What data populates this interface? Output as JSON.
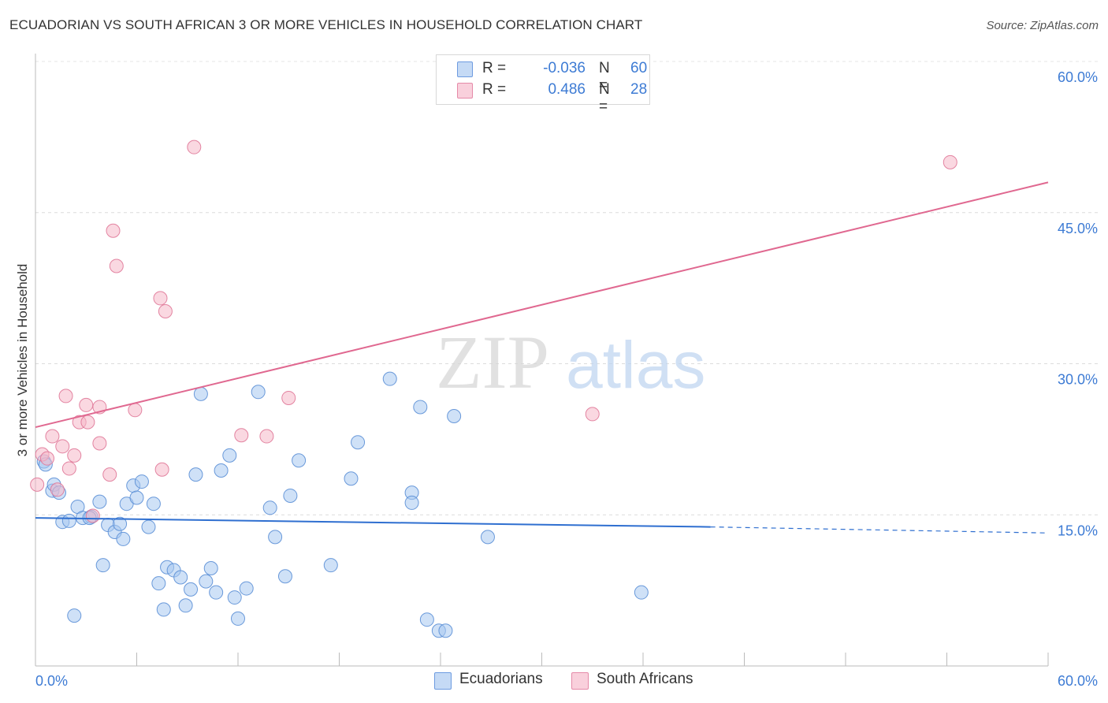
{
  "header": {
    "title": "ECUADORIAN VS SOUTH AFRICAN 3 OR MORE VEHICLES IN HOUSEHOLD CORRELATION CHART",
    "source": "Source: ZipAtlas.com"
  },
  "watermark": {
    "zip": "ZIP",
    "atlas": "atlas"
  },
  "legend": {
    "rows": [
      {
        "r_label": "R =",
        "r_value": "-0.036",
        "n_label": "N =",
        "n_value": "60",
        "color": "#a8c8f0"
      },
      {
        "r_label": "R =",
        "r_value": "0.486",
        "n_label": "N =",
        "n_value": "28",
        "color": "#f5b8c8"
      }
    ]
  },
  "chart_data": {
    "type": "scatter",
    "title": "ECUADORIAN VS SOUTH AFRICAN 3 OR MORE VEHICLES IN HOUSEHOLD CORRELATION CHART",
    "xlabel": "",
    "ylabel": "3 or more Vehicles in Household",
    "xlim": [
      0,
      60
    ],
    "ylim": [
      0,
      60
    ],
    "x_tick_labels": [
      "0.0%",
      "60.0%"
    ],
    "y_ticks": [
      15,
      30,
      45,
      60
    ],
    "y_tick_labels": [
      "15.0%",
      "30.0%",
      "45.0%",
      "60.0%"
    ],
    "grid": true,
    "legend_position": "top-center",
    "series": [
      {
        "name": "Ecuadorians",
        "color": "#a8c8f0",
        "stroke": "#5b8fd6",
        "trend": {
          "x": [
            0,
            40
          ],
          "y": [
            14.7,
            13.8
          ],
          "dashed_to": [
            60,
            13.2
          ],
          "color": "#2f6fd0"
        },
        "points": [
          [
            0.5,
            20.3
          ],
          [
            0.6,
            20.0
          ],
          [
            1.0,
            17.4
          ],
          [
            1.1,
            18.0
          ],
          [
            1.4,
            17.2
          ],
          [
            1.6,
            14.3
          ],
          [
            2.0,
            14.4
          ],
          [
            2.3,
            5.0
          ],
          [
            2.5,
            15.8
          ],
          [
            2.8,
            14.7
          ],
          [
            3.3,
            14.8
          ],
          [
            3.8,
            16.3
          ],
          [
            4.0,
            10.0
          ],
          [
            4.3,
            14.0
          ],
          [
            4.7,
            13.3
          ],
          [
            5.0,
            14.1
          ],
          [
            5.2,
            12.6
          ],
          [
            5.4,
            16.1
          ],
          [
            5.8,
            17.9
          ],
          [
            6.0,
            16.7
          ],
          [
            6.3,
            18.3
          ],
          [
            6.7,
            13.8
          ],
          [
            7.0,
            16.1
          ],
          [
            7.3,
            8.2
          ],
          [
            7.6,
            5.6
          ],
          [
            7.8,
            9.8
          ],
          [
            8.2,
            9.5
          ],
          [
            8.6,
            8.8
          ],
          [
            8.9,
            6.0
          ],
          [
            9.2,
            7.6
          ],
          [
            9.5,
            19.0
          ],
          [
            9.8,
            27.0
          ],
          [
            10.1,
            8.4
          ],
          [
            10.4,
            9.7
          ],
          [
            10.7,
            7.3
          ],
          [
            11.0,
            19.4
          ],
          [
            11.5,
            20.9
          ],
          [
            11.8,
            6.8
          ],
          [
            12.0,
            4.7
          ],
          [
            12.5,
            7.7
          ],
          [
            13.2,
            27.2
          ],
          [
            13.9,
            15.7
          ],
          [
            14.2,
            12.8
          ],
          [
            14.8,
            8.9
          ],
          [
            15.1,
            16.9
          ],
          [
            15.6,
            20.4
          ],
          [
            17.5,
            10.0
          ],
          [
            18.7,
            18.6
          ],
          [
            19.1,
            22.2
          ],
          [
            21.0,
            28.5
          ],
          [
            22.3,
            17.2
          ],
          [
            22.3,
            16.2
          ],
          [
            22.8,
            25.7
          ],
          [
            23.2,
            4.6
          ],
          [
            23.9,
            3.5
          ],
          [
            24.3,
            3.5
          ],
          [
            24.8,
            24.8
          ],
          [
            26.8,
            12.8
          ],
          [
            35.9,
            7.3
          ],
          [
            3.2,
            14.7
          ]
        ]
      },
      {
        "name": "South Africans",
        "color": "#f5b8c8",
        "stroke": "#e07898",
        "trend": {
          "x": [
            0,
            60
          ],
          "y": [
            23.7,
            48.0
          ],
          "color": "#e06890"
        },
        "points": [
          [
            0.1,
            18.0
          ],
          [
            0.4,
            21.0
          ],
          [
            0.7,
            20.6
          ],
          [
            1.0,
            22.8
          ],
          [
            1.3,
            17.5
          ],
          [
            1.6,
            21.8
          ],
          [
            1.8,
            26.8
          ],
          [
            2.0,
            19.6
          ],
          [
            2.3,
            20.9
          ],
          [
            2.6,
            24.2
          ],
          [
            3.1,
            24.2
          ],
          [
            3.0,
            25.9
          ],
          [
            3.4,
            14.9
          ],
          [
            3.8,
            22.1
          ],
          [
            3.8,
            25.7
          ],
          [
            4.4,
            19.0
          ],
          [
            4.6,
            43.2
          ],
          [
            4.8,
            39.7
          ],
          [
            5.9,
            25.4
          ],
          [
            7.4,
            36.5
          ],
          [
            7.5,
            19.5
          ],
          [
            7.7,
            35.2
          ],
          [
            9.4,
            51.5
          ],
          [
            12.2,
            22.9
          ],
          [
            13.7,
            22.8
          ],
          [
            15.0,
            26.6
          ],
          [
            33.0,
            25.0
          ],
          [
            54.2,
            50.0
          ]
        ]
      }
    ]
  },
  "bottom_legend": [
    {
      "label": "Ecuadorians",
      "color": "#a8c8f0"
    },
    {
      "label": "South Africans",
      "color": "#f5b8c8"
    }
  ]
}
